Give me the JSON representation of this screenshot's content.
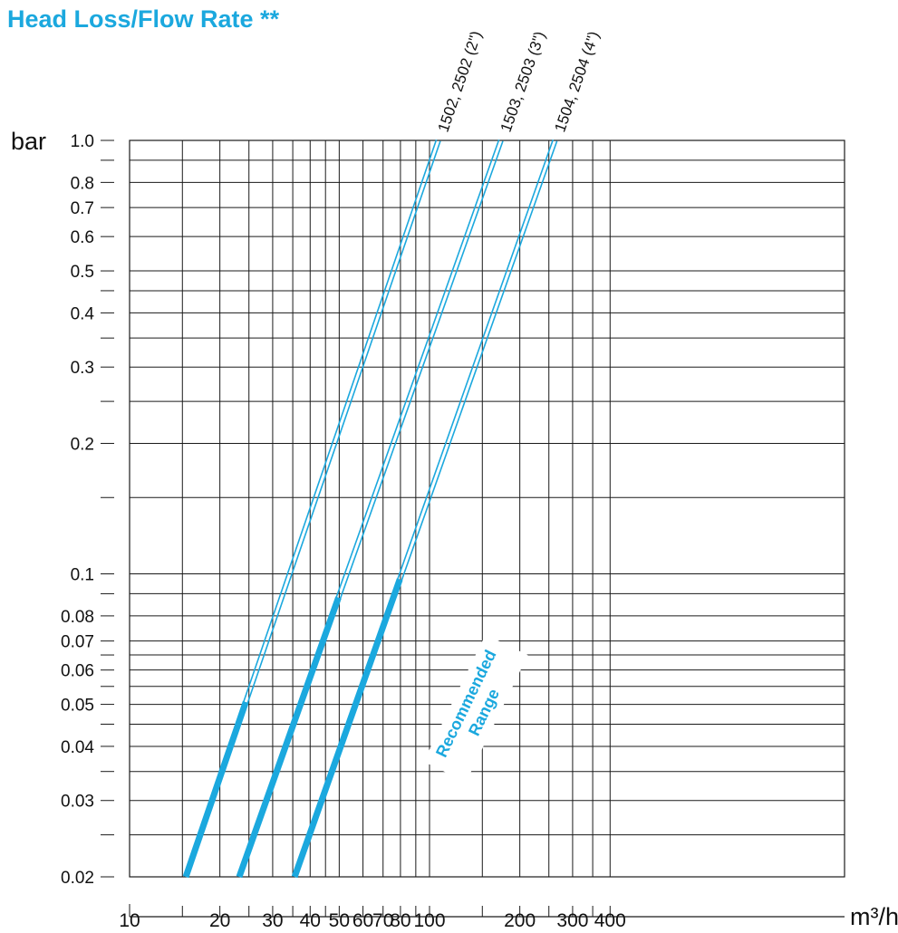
{
  "chart_data": {
    "type": "line",
    "title": "Head Loss/Flow Rate **",
    "xlabel": "m³/h",
    "ylabel": "bar",
    "xscale": "log",
    "yscale": "log",
    "xlim": [
      10,
      450
    ],
    "ylim": [
      0.02,
      1.0
    ],
    "grid": true,
    "line_color": "#1ba8de",
    "x_tick_labels": [
      {
        "value": 10,
        "label": "10"
      },
      {
        "value": 20,
        "label": "20"
      },
      {
        "value": 30,
        "label": "30"
      },
      {
        "value": 40,
        "label": "40"
      },
      {
        "value": 50,
        "label": "50"
      },
      {
        "value": 60,
        "label": "60"
      },
      {
        "value": 70,
        "label": "70"
      },
      {
        "value": 80,
        "label": "80"
      },
      {
        "value": 100,
        "label": "100"
      },
      {
        "value": 200,
        "label": "200"
      },
      {
        "value": 300,
        "label": "300"
      },
      {
        "value": 400,
        "label": "400"
      }
    ],
    "x_minor_ticks": [
      15,
      25,
      35,
      45,
      90,
      150,
      250,
      350
    ],
    "y_tick_labels": [
      {
        "value": 1.0,
        "label": "1.0"
      },
      {
        "value": 0.8,
        "label": "0.8"
      },
      {
        "value": 0.7,
        "label": "0.7"
      },
      {
        "value": 0.6,
        "label": "0.6"
      },
      {
        "value": 0.5,
        "label": "0.5"
      },
      {
        "value": 0.4,
        "label": "0.4"
      },
      {
        "value": 0.3,
        "label": "0.3"
      },
      {
        "value": 0.2,
        "label": "0.2"
      },
      {
        "value": 0.1,
        "label": "0.1"
      },
      {
        "value": 0.08,
        "label": "0.08"
      },
      {
        "value": 0.07,
        "label": "0.07"
      },
      {
        "value": 0.06,
        "label": "0.06"
      },
      {
        "value": 0.05,
        "label": "0.05"
      },
      {
        "value": 0.04,
        "label": "0.04"
      },
      {
        "value": 0.03,
        "label": "0.03"
      },
      {
        "value": 0.02,
        "label": "0.02"
      }
    ],
    "y_minor_ticks": [
      0.9,
      0.45,
      0.35,
      0.25,
      0.15,
      0.09,
      0.065,
      0.055,
      0.045,
      0.035,
      0.025
    ],
    "series": [
      {
        "name": "1502, 2502 (2\")",
        "x_range": [
          15.4,
          107
        ],
        "recommended_range": [
          15.4,
          24.4
        ]
      },
      {
        "name": "1503, 2503 (3\")",
        "x_range": [
          23.2,
          173
        ],
        "recommended_range": [
          23.2,
          49.7
        ]
      },
      {
        "name": "1504, 2504 (4\")",
        "x_range": [
          35.5,
          262
        ],
        "recommended_range": [
          35.5,
          79.6
        ]
      }
    ],
    "annotation": {
      "lines": [
        "Recommended",
        "Range"
      ]
    }
  }
}
